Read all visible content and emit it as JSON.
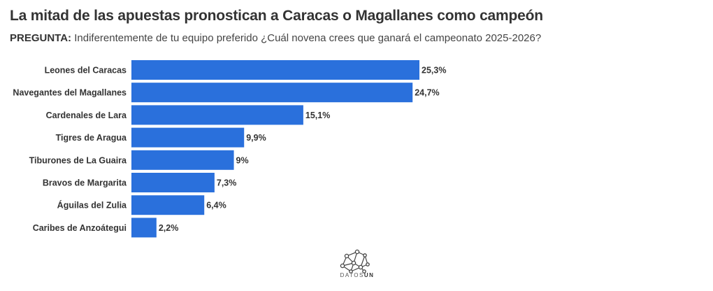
{
  "header": {
    "title": "La mitad de las apuestas pronostican a Caracas o Magallanes como campeón",
    "subtitle_label": "PREGUNTA:",
    "subtitle_text": "Indiferentemente de tu equipo preferido ¿Cuál novena crees que ganará el campeonato 2025-2026?"
  },
  "chart_data": {
    "type": "bar",
    "orientation": "horizontal",
    "title": "La mitad de las apuestas pronostican a Caracas o Magallanes como campeón",
    "xlabel": "",
    "ylabel": "",
    "xlim": [
      0,
      25.3
    ],
    "grid": false,
    "bar_color": "#2a70dc",
    "categories": [
      "Leones del Caracas",
      "Navegantes del Magallanes",
      "Cardenales de Lara",
      "Tigres de Aragua",
      "Tiburones de La Guaira",
      "Bravos de Margarita",
      "Águilas del Zulia",
      "Caribes de Anzoátegui"
    ],
    "values": [
      25.3,
      24.7,
      15.1,
      9.9,
      9,
      7.3,
      6.4,
      2.2
    ],
    "value_labels": [
      "25,3%",
      "24,7%",
      "15,1%",
      "9,9%",
      "9%",
      "7,3%",
      "6,4%",
      "2,2%"
    ]
  },
  "footer": {
    "logo_text_light": "DATOS",
    "logo_text_bold": "UN"
  }
}
